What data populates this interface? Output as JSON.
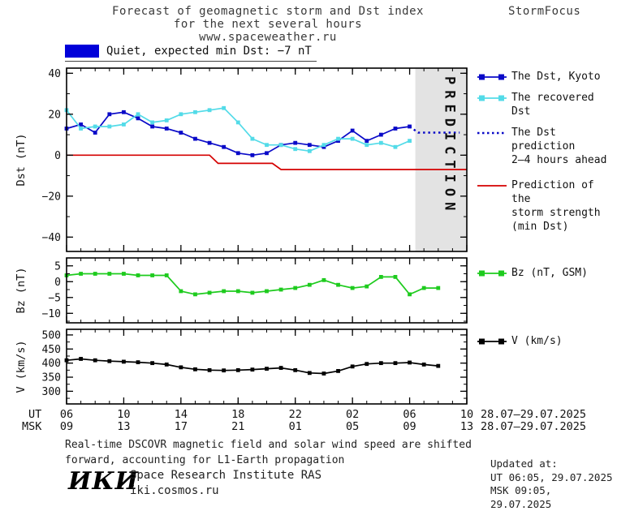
{
  "header": {
    "title_line1": "Forecast of geomagnetic storm and Dst index",
    "title_line2": "for the next several hours",
    "title_line3": "www.spaceweather.ru",
    "brand": "StormFocus"
  },
  "status": {
    "label": "Quiet, expected min Dst: −7 nT",
    "swatch_color": "#0000d9"
  },
  "chart_data": [
    {
      "type": "line",
      "ylabel": "Dst (nT)",
      "ylim": [
        -47,
        42.5
      ],
      "yticks": [
        40,
        20,
        0,
        -20,
        -40
      ],
      "yminor_step": 10,
      "xlim": [
        6,
        34
      ],
      "xticks_hours": [
        6,
        10,
        14,
        18,
        22,
        26,
        30,
        34
      ],
      "xminor_step": 1,
      "prediction_band": {
        "start_hour": 30.4,
        "end_hour": 34,
        "label": "PREDICTION",
        "color": "#e3e3e3",
        "label_color": "#b5b5b5"
      },
      "series": [
        {
          "name": "The Dst, Kyoto",
          "color": "#0a0ac8",
          "style": "solid",
          "marker": "square",
          "x": [
            6,
            7,
            8,
            9,
            10,
            11,
            12,
            13,
            14,
            15,
            16,
            17,
            18,
            19,
            20,
            21,
            22,
            23,
            24,
            25,
            26,
            27,
            28,
            29,
            30
          ],
          "values": [
            13,
            15,
            11,
            20,
            21,
            18,
            14,
            13,
            11,
            8,
            6,
            4,
            1,
            0,
            1,
            5,
            6,
            5,
            4,
            7,
            12,
            7,
            10,
            13,
            14
          ]
        },
        {
          "name": "The recovered Dst",
          "color": "#53dbe8",
          "style": "solid",
          "marker": "square",
          "x": [
            6,
            7,
            8,
            9,
            10,
            11,
            12,
            13,
            14,
            15,
            16,
            17,
            18,
            19,
            20,
            21,
            22,
            23,
            24,
            25,
            26,
            27,
            28,
            29,
            30
          ],
          "values": [
            22,
            13,
            14,
            14,
            15,
            20,
            16,
            17,
            20,
            21,
            22,
            23,
            16,
            8,
            5,
            5,
            3,
            2,
            5,
            8,
            8,
            5,
            6,
            4,
            7
          ]
        },
        {
          "name": "The Dst prediction 2–4 hours ahead",
          "legend_lines": [
            "The Dst prediction",
            "2–4 hours ahead"
          ],
          "color": "#0a0ac8",
          "style": "dotted",
          "marker": "none",
          "x": [
            30,
            30.6,
            33.5
          ],
          "values": [
            14,
            11,
            11
          ]
        },
        {
          "name": "Prediction of the storm strength (min Dst)",
          "legend_lines": [
            "Prediction of the",
            "storm strength",
            "(min Dst)"
          ],
          "color": "#d40000",
          "style": "solid",
          "marker": "none",
          "x": [
            6,
            16,
            16.6,
            20.4,
            21,
            34
          ],
          "values": [
            0,
            0,
            -4,
            -4,
            -7,
            -7
          ]
        }
      ]
    },
    {
      "type": "line",
      "ylabel": "Bz (nT)",
      "ylim": [
        -13,
        7.5
      ],
      "yticks": [
        5,
        0,
        -5,
        -10
      ],
      "yminor_step": 2.5,
      "xlim": [
        6,
        34
      ],
      "xticks_hours": [
        6,
        10,
        14,
        18,
        22,
        26,
        30,
        34
      ],
      "xminor_step": 1,
      "series": [
        {
          "name": "Bz (nT, GSM)",
          "color": "#1ecb1e",
          "style": "solid",
          "marker": "square",
          "x": [
            6,
            7,
            8,
            9,
            10,
            11,
            12,
            13,
            14,
            15,
            16,
            17,
            18,
            19,
            20,
            21,
            22,
            23,
            24,
            25,
            26,
            27,
            28,
            29,
            30,
            31,
            32
          ],
          "values": [
            2,
            2.5,
            2.5,
            2.5,
            2.5,
            2,
            2,
            2,
            -3,
            -4,
            -3.5,
            -3,
            -3,
            -3.5,
            -3,
            -2.5,
            -2,
            -1,
            0.5,
            -1,
            -2,
            -1.5,
            1.5,
            1.5,
            -4,
            -2,
            -2
          ]
        }
      ]
    },
    {
      "type": "line",
      "ylabel": "V (km/s)",
      "ylim": [
        255,
        520
      ],
      "yticks": [
        500,
        450,
        400,
        350,
        300
      ],
      "yminor_step": 25,
      "xlim": [
        6,
        34
      ],
      "xticks_hours": [
        6,
        10,
        14,
        18,
        22,
        26,
        30,
        34
      ],
      "xminor_step": 1,
      "series": [
        {
          "name": "V (km/s)",
          "color": "#000000",
          "style": "solid",
          "marker": "square",
          "x": [
            6,
            7,
            8,
            9,
            10,
            11,
            12,
            13,
            14,
            15,
            16,
            17,
            18,
            19,
            20,
            21,
            22,
            23,
            24,
            25,
            26,
            27,
            28,
            29,
            30,
            31,
            32
          ],
          "values": [
            410,
            415,
            410,
            407,
            405,
            403,
            400,
            395,
            385,
            378,
            375,
            374,
            375,
            377,
            380,
            383,
            375,
            365,
            363,
            372,
            388,
            397,
            400,
            400,
            402,
            395,
            390
          ]
        }
      ]
    }
  ],
  "xaxis": {
    "ut_label": "UT",
    "msk_label": "MSK",
    "ut_ticks": [
      "06",
      "10",
      "14",
      "18",
      "22",
      "02",
      "06",
      "10"
    ],
    "msk_ticks": [
      "09",
      "13",
      "17",
      "21",
      "01",
      "05",
      "09",
      "13"
    ],
    "ut_daterange": "28.07–29.07.2025",
    "msk_daterange": "28.07–29.07.2025"
  },
  "footnote": {
    "line1": "Real-time DSCOVR magnetic field and solar wind speed are shifted",
    "line2": "forward, accounting for L1-Earth propagation"
  },
  "footer": {
    "logo": "ИКИ",
    "institute": "Space Research Institute RAS",
    "site": "iki.cosmos.ru",
    "updated_label": "Updated at:",
    "updated_ut": "UT  06:05, 29.07.2025",
    "updated_msk": "MSK 09:05, 29.07.2025"
  }
}
